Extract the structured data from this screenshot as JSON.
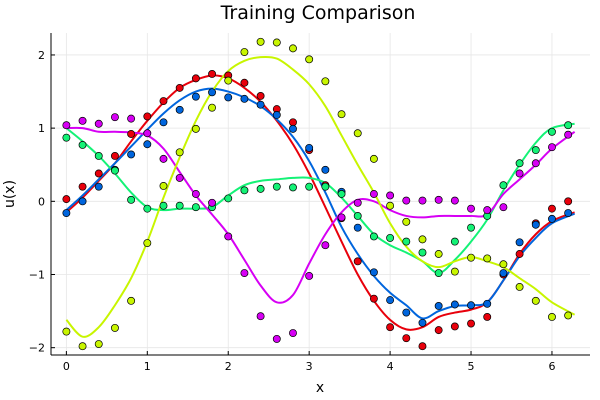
{
  "chart_data": {
    "type": "line+scatter",
    "title": "Training Comparison",
    "xlabel": "x",
    "ylabel": "u(x)",
    "xlim": [
      -0.19,
      6.47
    ],
    "ylim": [
      -2.1,
      2.3
    ],
    "xticks": [
      0,
      1,
      2,
      3,
      4,
      5,
      6
    ],
    "yticks": [
      -2,
      -1,
      0,
      1,
      2
    ],
    "xtick_labels": [
      "0",
      "1",
      "2",
      "3",
      "4",
      "5",
      "6"
    ],
    "ytick_labels": [
      "−2",
      "−1",
      "0",
      "1",
      "2"
    ],
    "grid": true,
    "legend": "none",
    "sample_x": [
      0.0,
      0.2,
      0.4,
      0.6,
      0.8,
      1.0,
      1.2,
      1.4,
      1.6,
      1.8,
      2.0,
      2.2,
      2.4,
      2.6,
      2.8,
      3.0,
      3.2,
      3.4,
      3.6,
      3.8,
      4.0,
      4.2,
      4.4,
      4.6,
      4.8,
      5.0,
      5.2,
      5.4,
      5.6,
      5.8,
      6.0,
      6.2
    ],
    "series": [
      {
        "name": "red",
        "color": "#e8000b",
        "points": [
          0.03,
          0.2,
          0.38,
          0.62,
          0.92,
          1.16,
          1.37,
          1.55,
          1.68,
          1.74,
          1.72,
          1.62,
          1.44,
          1.26,
          1.08,
          0.7,
          0.22,
          -0.23,
          -0.82,
          -1.33,
          -1.72,
          -1.87,
          -1.98,
          -1.76,
          -1.71,
          -1.67,
          -1.58,
          -1.0,
          -0.72,
          -0.3,
          -0.1,
          0.0
        ],
        "curve": [
          -0.15,
          0.05,
          0.28,
          0.52,
          0.82,
          1.1,
          1.35,
          1.55,
          1.66,
          1.72,
          1.68,
          1.55,
          1.36,
          1.1,
          0.78,
          0.38,
          -0.08,
          -0.55,
          -1.0,
          -1.36,
          -1.62,
          -1.75,
          -1.72,
          -1.58,
          -1.52,
          -1.48,
          -1.38,
          -1.08,
          -0.72,
          -0.45,
          -0.27,
          -0.15
        ]
      },
      {
        "name": "blue",
        "color": "#0065dd",
        "points": [
          -0.16,
          0.0,
          0.2,
          0.43,
          0.64,
          0.78,
          1.08,
          1.25,
          1.43,
          1.49,
          1.42,
          1.4,
          1.32,
          1.18,
          0.99,
          0.73,
          0.43,
          0.13,
          -0.36,
          -0.97,
          -1.35,
          -1.52,
          -1.66,
          -1.43,
          -1.41,
          -1.42,
          -1.4,
          -0.98,
          -0.56,
          -0.32,
          -0.24,
          -0.16
        ],
        "curve": [
          -0.12,
          0.08,
          0.3,
          0.52,
          0.75,
          0.98,
          1.2,
          1.38,
          1.5,
          1.54,
          1.5,
          1.42,
          1.3,
          1.12,
          0.88,
          0.55,
          0.12,
          -0.35,
          -0.72,
          -1.02,
          -1.25,
          -1.42,
          -1.6,
          -1.5,
          -1.43,
          -1.42,
          -1.38,
          -1.08,
          -0.75,
          -0.5,
          -0.3,
          -0.17
        ]
      },
      {
        "name": "springgreen",
        "color": "#14f276",
        "points": [
          0.87,
          0.77,
          0.62,
          0.42,
          0.02,
          -0.1,
          -0.06,
          -0.06,
          -0.08,
          -0.08,
          0.04,
          0.15,
          0.17,
          0.2,
          0.19,
          0.2,
          0.2,
          0.1,
          -0.2,
          -0.48,
          -0.5,
          -0.55,
          -0.7,
          -0.98,
          -0.55,
          -0.36,
          -0.2,
          0.22,
          0.52,
          0.7,
          0.95,
          1.04
        ],
        "curve": [
          1.0,
          0.82,
          0.62,
          0.38,
          0.12,
          -0.08,
          -0.12,
          -0.1,
          -0.1,
          -0.08,
          0.08,
          0.22,
          0.28,
          0.3,
          0.32,
          0.32,
          0.25,
          0.05,
          -0.2,
          -0.45,
          -0.6,
          -0.7,
          -0.82,
          -0.98,
          -0.8,
          -0.55,
          -0.25,
          0.15,
          0.5,
          0.8,
          1.0,
          1.06
        ]
      },
      {
        "name": "magenta",
        "color": "#d600f4",
        "points": [
          1.04,
          1.1,
          1.06,
          1.15,
          1.13,
          0.93,
          0.58,
          0.32,
          0.1,
          -0.02,
          -0.48,
          -0.98,
          -1.57,
          -1.88,
          -1.8,
          -1.02,
          -0.6,
          -0.22,
          -0.02,
          0.1,
          0.08,
          0.01,
          0.01,
          0.02,
          0.01,
          -0.1,
          -0.12,
          -0.08,
          0.38,
          0.52,
          0.74,
          0.91
        ],
        "curve": [
          1.0,
          1.0,
          0.95,
          0.95,
          0.94,
          0.9,
          0.72,
          0.4,
          0.08,
          -0.18,
          -0.45,
          -0.8,
          -1.15,
          -1.38,
          -1.28,
          -0.85,
          -0.45,
          -0.15,
          0.02,
          0.0,
          -0.12,
          -0.2,
          -0.22,
          -0.2,
          -0.2,
          -0.2,
          -0.18,
          0.1,
          0.3,
          0.5,
          0.72,
          0.95
        ]
      },
      {
        "name": "chartreuse",
        "color": "#c8f500",
        "points": [
          -1.78,
          -1.98,
          -1.95,
          -1.73,
          -1.36,
          -0.57,
          0.21,
          0.67,
          0.99,
          1.28,
          1.65,
          2.04,
          2.18,
          2.17,
          2.09,
          1.94,
          1.64,
          1.19,
          0.93,
          0.58,
          -0.06,
          -0.28,
          -0.52,
          -0.72,
          -0.96,
          -0.77,
          -0.78,
          -0.86,
          -1.17,
          -1.36,
          -1.58,
          -1.56
        ],
        "curve": [
          -1.62,
          -1.85,
          -1.72,
          -1.42,
          -1.05,
          -0.55,
          0.05,
          0.6,
          1.1,
          1.5,
          1.78,
          1.92,
          1.97,
          1.95,
          1.8,
          1.6,
          1.3,
          0.9,
          0.5,
          0.12,
          -0.3,
          -0.62,
          -0.82,
          -0.9,
          -0.82,
          -0.76,
          -0.82,
          -0.9,
          -1.05,
          -1.2,
          -1.38,
          -1.55
        ]
      }
    ]
  }
}
